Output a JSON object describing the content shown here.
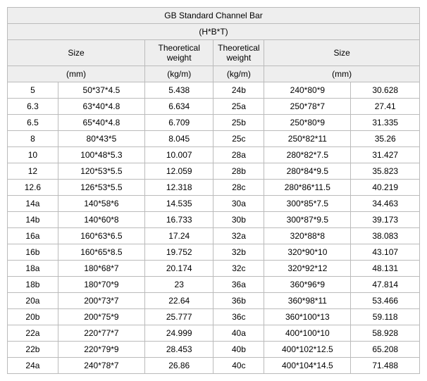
{
  "title1": "GB Standard Channel Bar",
  "title2": "(H*B*T)",
  "headers": {
    "size": "Size",
    "tw": "Theoretical\nweight",
    "mm": "(mm)",
    "kgm": "(kg/m)"
  },
  "rows": [
    {
      "c1": "5",
      "c2": "50*37*4.5",
      "c3": "5.438",
      "c4": "24b",
      "c5": "240*80*9",
      "c6": "30.628"
    },
    {
      "c1": "6.3",
      "c2": "63*40*4.8",
      "c3": "6.634",
      "c4": "25a",
      "c5": "250*78*7",
      "c6": "27.41"
    },
    {
      "c1": "6.5",
      "c2": "65*40*4.8",
      "c3": "6.709",
      "c4": "25b",
      "c5": "250*80*9",
      "c6": "31.335"
    },
    {
      "c1": "8",
      "c2": "80*43*5",
      "c3": "8.045",
      "c4": "25c",
      "c5": "250*82*11",
      "c6": "35.26"
    },
    {
      "c1": "10",
      "c2": "100*48*5.3",
      "c3": "10.007",
      "c4": "28a",
      "c5": "280*82*7.5",
      "c6": "31.427"
    },
    {
      "c1": "12",
      "c2": "120*53*5.5",
      "c3": "12.059",
      "c4": "28b",
      "c5": "280*84*9.5",
      "c6": "35.823"
    },
    {
      "c1": "12.6",
      "c2": "126*53*5.5",
      "c3": "12.318",
      "c4": "28c",
      "c5": "280*86*11.5",
      "c6": "40.219"
    },
    {
      "c1": "14a",
      "c2": "140*58*6",
      "c3": "14.535",
      "c4": "30a",
      "c5": "300*85*7.5",
      "c6": "34.463"
    },
    {
      "c1": "14b",
      "c2": "140*60*8",
      "c3": "16.733",
      "c4": "30b",
      "c5": "300*87*9.5",
      "c6": "39.173"
    },
    {
      "c1": "16a",
      "c2": "160*63*6.5",
      "c3": "17.24",
      "c4": "32a",
      "c5": "320*88*8",
      "c6": "38.083"
    },
    {
      "c1": "16b",
      "c2": "160*65*8.5",
      "c3": "19.752",
      "c4": "32b",
      "c5": "320*90*10",
      "c6": "43.107"
    },
    {
      "c1": "18a",
      "c2": "180*68*7",
      "c3": "20.174",
      "c4": "32c",
      "c5": "320*92*12",
      "c6": "48.131"
    },
    {
      "c1": "18b",
      "c2": "180*70*9",
      "c3": "23",
      "c4": "36a",
      "c5": "360*96*9",
      "c6": "47.814"
    },
    {
      "c1": "20a",
      "c2": "200*73*7",
      "c3": "22.64",
      "c4": "36b",
      "c5": "360*98*11",
      "c6": "53.466"
    },
    {
      "c1": "20b",
      "c2": "200*75*9",
      "c3": "25.777",
      "c4": "36c",
      "c5": "360*100*13",
      "c6": "59.118"
    },
    {
      "c1": "22a",
      "c2": "220*77*7",
      "c3": "24.999",
      "c4": "40a",
      "c5": "400*100*10",
      "c6": "58.928"
    },
    {
      "c1": "22b",
      "c2": "220*79*9",
      "c3": "28.453",
      "c4": "40b",
      "c5": "400*102*12.5",
      "c6": "65.208"
    },
    {
      "c1": "24a",
      "c2": "240*78*7",
      "c3": "26.86",
      "c4": "40c",
      "c5": "400*104*14.5",
      "c6": "71.488"
    }
  ],
  "col_widths": [
    "70px",
    "120px",
    "95px",
    "70px",
    "120px",
    "95px"
  ],
  "colors": {
    "border": "#bbbbbb",
    "header_bg": "#eeeeee"
  }
}
